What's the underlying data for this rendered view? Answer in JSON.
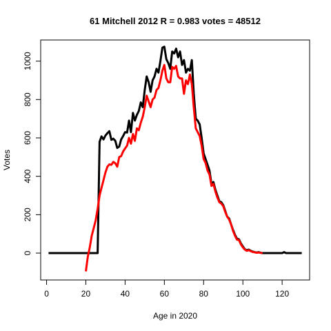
{
  "chart_data": {
    "type": "line",
    "title": "61 Mitchell 2012 R = 0.983 votes = 48512",
    "xlabel": "Age in 2020",
    "ylabel": "Votes",
    "xlim": [
      -3,
      134
    ],
    "ylim": [
      -140,
      1110
    ],
    "xticks": [
      0,
      20,
      40,
      60,
      80,
      100,
      120
    ],
    "yticks": [
      0,
      200,
      400,
      600,
      800,
      1000
    ],
    "grid": false,
    "series": [
      {
        "color": "#000000",
        "points": [
          [
            1,
            0
          ],
          [
            5,
            0
          ],
          [
            10,
            0
          ],
          [
            15,
            0
          ],
          [
            20,
            0
          ],
          [
            25,
            0
          ],
          [
            26,
            0
          ],
          [
            27,
            580
          ],
          [
            28,
            608
          ],
          [
            29,
            592
          ],
          [
            30,
            612
          ],
          [
            31,
            625
          ],
          [
            32,
            635
          ],
          [
            33,
            590
          ],
          [
            34,
            596
          ],
          [
            35,
            585
          ],
          [
            36,
            548
          ],
          [
            37,
            555
          ],
          [
            38,
            592
          ],
          [
            39,
            610
          ],
          [
            40,
            630
          ],
          [
            41,
            628
          ],
          [
            42,
            690
          ],
          [
            43,
            630
          ],
          [
            44,
            730
          ],
          [
            45,
            690
          ],
          [
            46,
            720
          ],
          [
            47,
            740
          ],
          [
            48,
            785
          ],
          [
            49,
            760
          ],
          [
            50,
            850
          ],
          [
            51,
            920
          ],
          [
            52,
            890
          ],
          [
            53,
            840
          ],
          [
            54,
            900
          ],
          [
            55,
            920
          ],
          [
            56,
            960
          ],
          [
            57,
            940
          ],
          [
            58,
            1000
          ],
          [
            59,
            1070
          ],
          [
            60,
            1075
          ],
          [
            61,
            1010
          ],
          [
            62,
            990
          ],
          [
            63,
            960
          ],
          [
            64,
            1050
          ],
          [
            65,
            1040
          ],
          [
            66,
            1065
          ],
          [
            67,
            1020
          ],
          [
            68,
            1050
          ],
          [
            69,
            980
          ],
          [
            70,
            1005
          ],
          [
            71,
            940
          ],
          [
            72,
            960
          ],
          [
            73,
            950
          ],
          [
            74,
            1005
          ],
          [
            75,
            830
          ],
          [
            76,
            700
          ],
          [
            77,
            690
          ],
          [
            78,
            670
          ],
          [
            79,
            600
          ],
          [
            80,
            520
          ],
          [
            81,
            490
          ],
          [
            82,
            460
          ],
          [
            83,
            430
          ],
          [
            84,
            360
          ],
          [
            85,
            370
          ],
          [
            86,
            330
          ],
          [
            87,
            300
          ],
          [
            88,
            270
          ],
          [
            89,
            265
          ],
          [
            90,
            250
          ],
          [
            91,
            220
          ],
          [
            92,
            190
          ],
          [
            93,
            180
          ],
          [
            94,
            150
          ],
          [
            95,
            120
          ],
          [
            96,
            95
          ],
          [
            97,
            75
          ],
          [
            98,
            72
          ],
          [
            99,
            50
          ],
          [
            100,
            35
          ],
          [
            101,
            20
          ],
          [
            102,
            15
          ],
          [
            103,
            18
          ],
          [
            104,
            12
          ],
          [
            105,
            8
          ],
          [
            106,
            5
          ],
          [
            107,
            3
          ],
          [
            108,
            5
          ],
          [
            109,
            2
          ],
          [
            110,
            0
          ],
          [
            115,
            0
          ],
          [
            120,
            0
          ],
          [
            121,
            5
          ],
          [
            122,
            0
          ],
          [
            125,
            0
          ],
          [
            130,
            0
          ]
        ]
      },
      {
        "color": "#ff0000",
        "points": [
          [
            20,
            -95
          ],
          [
            21,
            -20
          ],
          [
            22,
            30
          ],
          [
            23,
            90
          ],
          [
            24,
            130
          ],
          [
            25,
            170
          ],
          [
            26,
            230
          ],
          [
            27,
            300
          ],
          [
            28,
            340
          ],
          [
            29,
            380
          ],
          [
            30,
            420
          ],
          [
            31,
            450
          ],
          [
            32,
            462
          ],
          [
            33,
            460
          ],
          [
            34,
            475
          ],
          [
            35,
            468
          ],
          [
            36,
            450
          ],
          [
            37,
            500
          ],
          [
            38,
            505
          ],
          [
            39,
            530
          ],
          [
            40,
            545
          ],
          [
            41,
            560
          ],
          [
            42,
            600
          ],
          [
            43,
            570
          ],
          [
            44,
            620
          ],
          [
            45,
            585
          ],
          [
            46,
            650
          ],
          [
            47,
            640
          ],
          [
            48,
            680
          ],
          [
            49,
            710
          ],
          [
            50,
            760
          ],
          [
            51,
            820
          ],
          [
            52,
            790
          ],
          [
            53,
            760
          ],
          [
            54,
            800
          ],
          [
            55,
            810
          ],
          [
            56,
            850
          ],
          [
            57,
            860
          ],
          [
            58,
            900
          ],
          [
            59,
            950
          ],
          [
            60,
            980
          ],
          [
            61,
            910
          ],
          [
            62,
            890
          ],
          [
            63,
            890
          ],
          [
            64,
            970
          ],
          [
            65,
            960
          ],
          [
            66,
            975
          ],
          [
            67,
            920
          ],
          [
            68,
            910
          ],
          [
            69,
            910
          ],
          [
            70,
            830
          ],
          [
            71,
            900
          ],
          [
            72,
            880
          ],
          [
            73,
            930
          ],
          [
            74,
            880
          ],
          [
            75,
            760
          ],
          [
            76,
            650
          ],
          [
            77,
            630
          ],
          [
            78,
            610
          ],
          [
            79,
            560
          ],
          [
            80,
            490
          ],
          [
            81,
            470
          ],
          [
            82,
            430
          ],
          [
            83,
            410
          ],
          [
            84,
            350
          ],
          [
            85,
            360
          ],
          [
            86,
            320
          ],
          [
            87,
            290
          ],
          [
            88,
            265
          ],
          [
            89,
            258
          ],
          [
            90,
            245
          ],
          [
            91,
            215
          ],
          [
            92,
            190
          ],
          [
            93,
            175
          ],
          [
            94,
            150
          ],
          [
            95,
            115
          ],
          [
            96,
            90
          ],
          [
            97,
            70
          ],
          [
            98,
            68
          ],
          [
            99,
            45
          ],
          [
            100,
            30
          ],
          [
            101,
            18
          ],
          [
            102,
            12
          ],
          [
            103,
            15
          ],
          [
            104,
            10
          ],
          [
            105,
            6
          ],
          [
            106,
            4
          ],
          [
            107,
            2
          ],
          [
            108,
            3
          ],
          [
            109,
            1
          ],
          [
            110,
            0
          ]
        ]
      }
    ]
  }
}
